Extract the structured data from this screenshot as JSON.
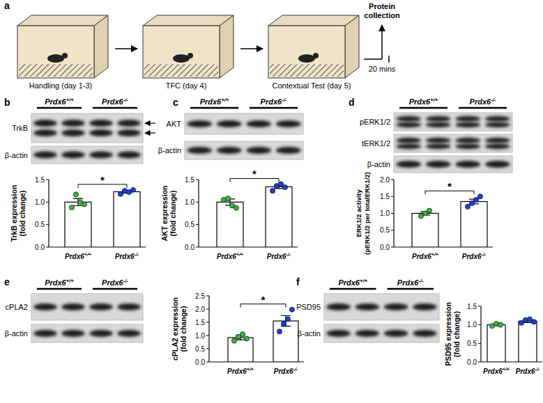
{
  "diagram": {
    "panel": "a",
    "steps": [
      "Handling (day 1-3)",
      "TFC (day 4)",
      "Contextual Test (day 5)"
    ],
    "end_label": "Protein\ncollection",
    "interval": "20 mins"
  },
  "chart_data": [
    {
      "type": "bar",
      "panel": "b",
      "blot_groups": [
        "Prdx6+/+",
        "Prdx6-/-"
      ],
      "blot_labels": [
        "TrkB",
        "β-actin"
      ],
      "categories": [
        "Prdx6+/+",
        "Prdx6-/-"
      ],
      "values": [
        1.0,
        1.23
      ],
      "errors": [
        0.08,
        0.03
      ],
      "points": [
        [
          0.88,
          1.17,
          1.0,
          0.95
        ],
        [
          1.18,
          1.25,
          1.22,
          1.27
        ]
      ],
      "colors": [
        "#3cb043",
        "#1f3fd8"
      ],
      "ylabel": "TrkB expression\n(fold change)",
      "ylim": [
        0,
        1.5
      ],
      "yticks": [
        {
          "value": 0,
          "label": "0.0"
        },
        {
          "value": 0.5,
          "label": "0.5"
        },
        {
          "value": 1,
          "label": "1.0"
        },
        {
          "value": 1.5,
          "label": "1.5"
        }
      ],
      "annotations": [
        "*"
      ]
    },
    {
      "type": "bar",
      "panel": "c",
      "blot_groups": [
        "Prdx6+/+",
        "Prdx6-/-"
      ],
      "blot_labels": [
        "AKT",
        "β-actin"
      ],
      "categories": [
        "Prdx6+/+",
        "Prdx6-/-"
      ],
      "values": [
        1.0,
        1.34
      ],
      "errors": [
        0.07,
        0.04
      ],
      "points": [
        [
          1.05,
          1.08,
          0.92,
          0.87
        ],
        [
          1.25,
          1.36,
          1.4,
          1.33
        ]
      ],
      "colors": [
        "#3cb043",
        "#1f3fd8"
      ],
      "ylabel": "AKT expression\n(fold change)",
      "ylim": [
        0,
        1.5
      ],
      "yticks": [
        {
          "value": 0,
          "label": "0.0"
        },
        {
          "value": 0.5,
          "label": "0.5"
        },
        {
          "value": 1,
          "label": "1.0"
        },
        {
          "value": 1.5,
          "label": "1.5"
        }
      ],
      "annotations": [
        "*"
      ]
    },
    {
      "type": "bar",
      "panel": "d",
      "blot_groups": [
        "Prdx6+/+",
        "Prdx6-/-"
      ],
      "blot_labels": [
        "pERK1/2",
        "tERK1/2",
        "β-actin"
      ],
      "categories": [
        "Prdx6+/+",
        "Prdx6-/-"
      ],
      "values": [
        1.0,
        1.35
      ],
      "errors": [
        0.05,
        0.07
      ],
      "points": [
        [
          0.92,
          1.0,
          1.08
        ],
        [
          1.2,
          1.3,
          1.4,
          1.5
        ]
      ],
      "colors": [
        "#3cb043",
        "#1f3fd8"
      ],
      "ylabel": "ERK1/2 activity\n(pERK1/2 per totalERK1/2)",
      "ylim": [
        0,
        2
      ],
      "yticks": [
        {
          "value": 0,
          "label": "0.0"
        },
        {
          "value": 0.5,
          "label": "0.5"
        },
        {
          "value": 1,
          "label": "1.0"
        },
        {
          "value": 1.5,
          "label": "1.5"
        },
        {
          "value": 2,
          "label": "2.0"
        }
      ],
      "annotations": [
        "*"
      ]
    },
    {
      "type": "bar",
      "panel": "e",
      "blot_groups": [
        "Prdx6+/+",
        "Prdx6-/-"
      ],
      "blot_labels": [
        "cPLA2",
        "β-actin"
      ],
      "categories": [
        "Prdx6+/+",
        "Prdx6-/-"
      ],
      "values": [
        0.92,
        1.55
      ],
      "errors": [
        0.08,
        0.2
      ],
      "points": [
        [
          0.8,
          0.95,
          1.05,
          0.88
        ],
        [
          1.15,
          1.45,
          1.62,
          1.98
        ]
      ],
      "colors": [
        "#3cb043",
        "#1f3fd8"
      ],
      "ylabel": "cPLA2 expression\n(fold change)",
      "ylim": [
        0,
        2.5
      ],
      "yticks": [
        {
          "value": 0,
          "label": "0.0"
        },
        {
          "value": 0.5,
          "label": "0.5"
        },
        {
          "value": 1,
          "label": "1.0"
        },
        {
          "value": 1.5,
          "label": "1.5"
        },
        {
          "value": 2,
          "label": "2.0"
        },
        {
          "value": 2.5,
          "label": "2.5"
        }
      ],
      "annotations": [
        "*"
      ]
    },
    {
      "type": "bar",
      "panel": "f",
      "blot_groups": [
        "Prdx6+/+",
        "Prdx6-/-"
      ],
      "blot_labels": [
        "PSD95",
        "β-actin"
      ],
      "categories": [
        "Prdx6+/+",
        "Prdx6-/-"
      ],
      "values": [
        1.0,
        1.1
      ],
      "errors": [
        0.02,
        0.04
      ],
      "points": [
        [
          0.97,
          1.03,
          1.0
        ],
        [
          1.05,
          1.13,
          1.15,
          1.08
        ]
      ],
      "colors": [
        "#3cb043",
        "#1f3fd8"
      ],
      "ylabel": "PSD95 expression\n(fold change)",
      "ylim": [
        0,
        1.5
      ],
      "yticks": [
        {
          "value": 0,
          "label": "0.0"
        },
        {
          "value": 0.5,
          "label": "0.5"
        },
        {
          "value": 1,
          "label": "1.0"
        },
        {
          "value": 1.5,
          "label": "1.5"
        }
      ],
      "annotations": []
    }
  ]
}
